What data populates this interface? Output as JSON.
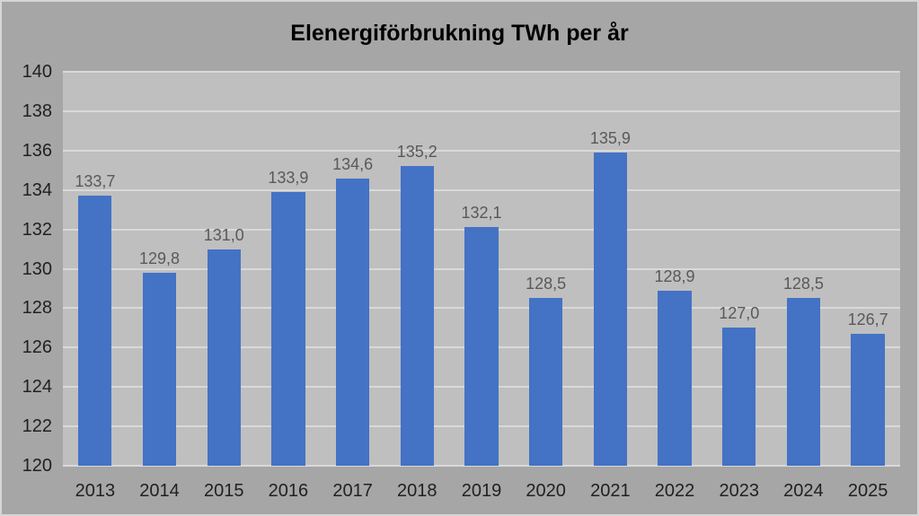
{
  "chart_data": {
    "type": "bar",
    "title": "Elenergiförbrukning TWh per år",
    "categories": [
      "2013",
      "2014",
      "2015",
      "2016",
      "2017",
      "2018",
      "2019",
      "2020",
      "2021",
      "2022",
      "2023",
      "2024",
      "2025"
    ],
    "values": [
      133.7,
      129.8,
      131.0,
      133.9,
      134.6,
      135.2,
      132.1,
      128.5,
      135.9,
      128.9,
      127.0,
      128.5,
      126.7
    ],
    "data_labels": [
      "133,7",
      "129,8",
      "131,0",
      "133,9",
      "134,6",
      "135,2",
      "132,1",
      "128,5",
      "135,9",
      "128,9",
      "127,0",
      "128,5",
      "126,7"
    ],
    "xlabel": "",
    "ylabel": "",
    "ylim": [
      120,
      140
    ],
    "ytick_step": 2,
    "yticks": [
      "140",
      "138",
      "136",
      "134",
      "132",
      "130",
      "128",
      "126",
      "124",
      "122",
      "120"
    ],
    "grid": true,
    "legend": "none",
    "colors": {
      "bar": "#4472C4",
      "plot_bg": "#BFBFBF",
      "outer_bg": "#A6A6A6",
      "gridline": "#D9D9D9",
      "data_label": "#595959",
      "axis_label": "#212121",
      "title": "#000000"
    }
  }
}
